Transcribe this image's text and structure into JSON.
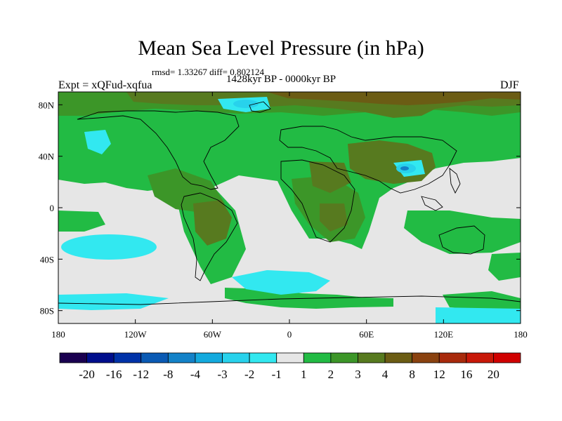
{
  "header": {
    "title": "Mean Sea Level Pressure (in hPa)",
    "stats": "rmsd= 1.33267 diff= 0.802124",
    "period": "1428kyr BP - 0000kyr BP",
    "experiment": "Expt = xQFud-xqfua",
    "season": "DJF"
  },
  "map": {
    "lon_range": [
      -180,
      180
    ],
    "lat_range": [
      -90,
      90
    ],
    "lat_ticks": [
      {
        "value": 80,
        "label": "80N"
      },
      {
        "value": 40,
        "label": "40N"
      },
      {
        "value": 0,
        "label": "0"
      },
      {
        "value": -40,
        "label": "40S"
      },
      {
        "value": -80,
        "label": "80S"
      }
    ],
    "lon_ticks": [
      {
        "value": -180,
        "label": "180"
      },
      {
        "value": -120,
        "label": "120W"
      },
      {
        "value": -60,
        "label": "60W"
      },
      {
        "value": 0,
        "label": "0"
      },
      {
        "value": 60,
        "label": "60E"
      },
      {
        "value": 120,
        "label": "120E"
      },
      {
        "value": 180,
        "label": "180"
      }
    ],
    "background_color": "#e6e6e6"
  },
  "colorbar": {
    "levels": [
      "-20",
      "-16",
      "-12",
      "-8",
      "-4",
      "-3",
      "-2",
      "-1",
      "1",
      "2",
      "3",
      "4",
      "8",
      "12",
      "16",
      "20"
    ],
    "colors": [
      "#1a0050",
      "#000e8c",
      "#0032a8",
      "#0a5ab4",
      "#1482c8",
      "#14aade",
      "#28d2ec",
      "#32e8f0",
      "#e6e6e6",
      "#22bb44",
      "#3c9628",
      "#577a1f",
      "#6b5c14",
      "#8a4210",
      "#a82a0c",
      "#c81808",
      "#d00000"
    ]
  }
}
